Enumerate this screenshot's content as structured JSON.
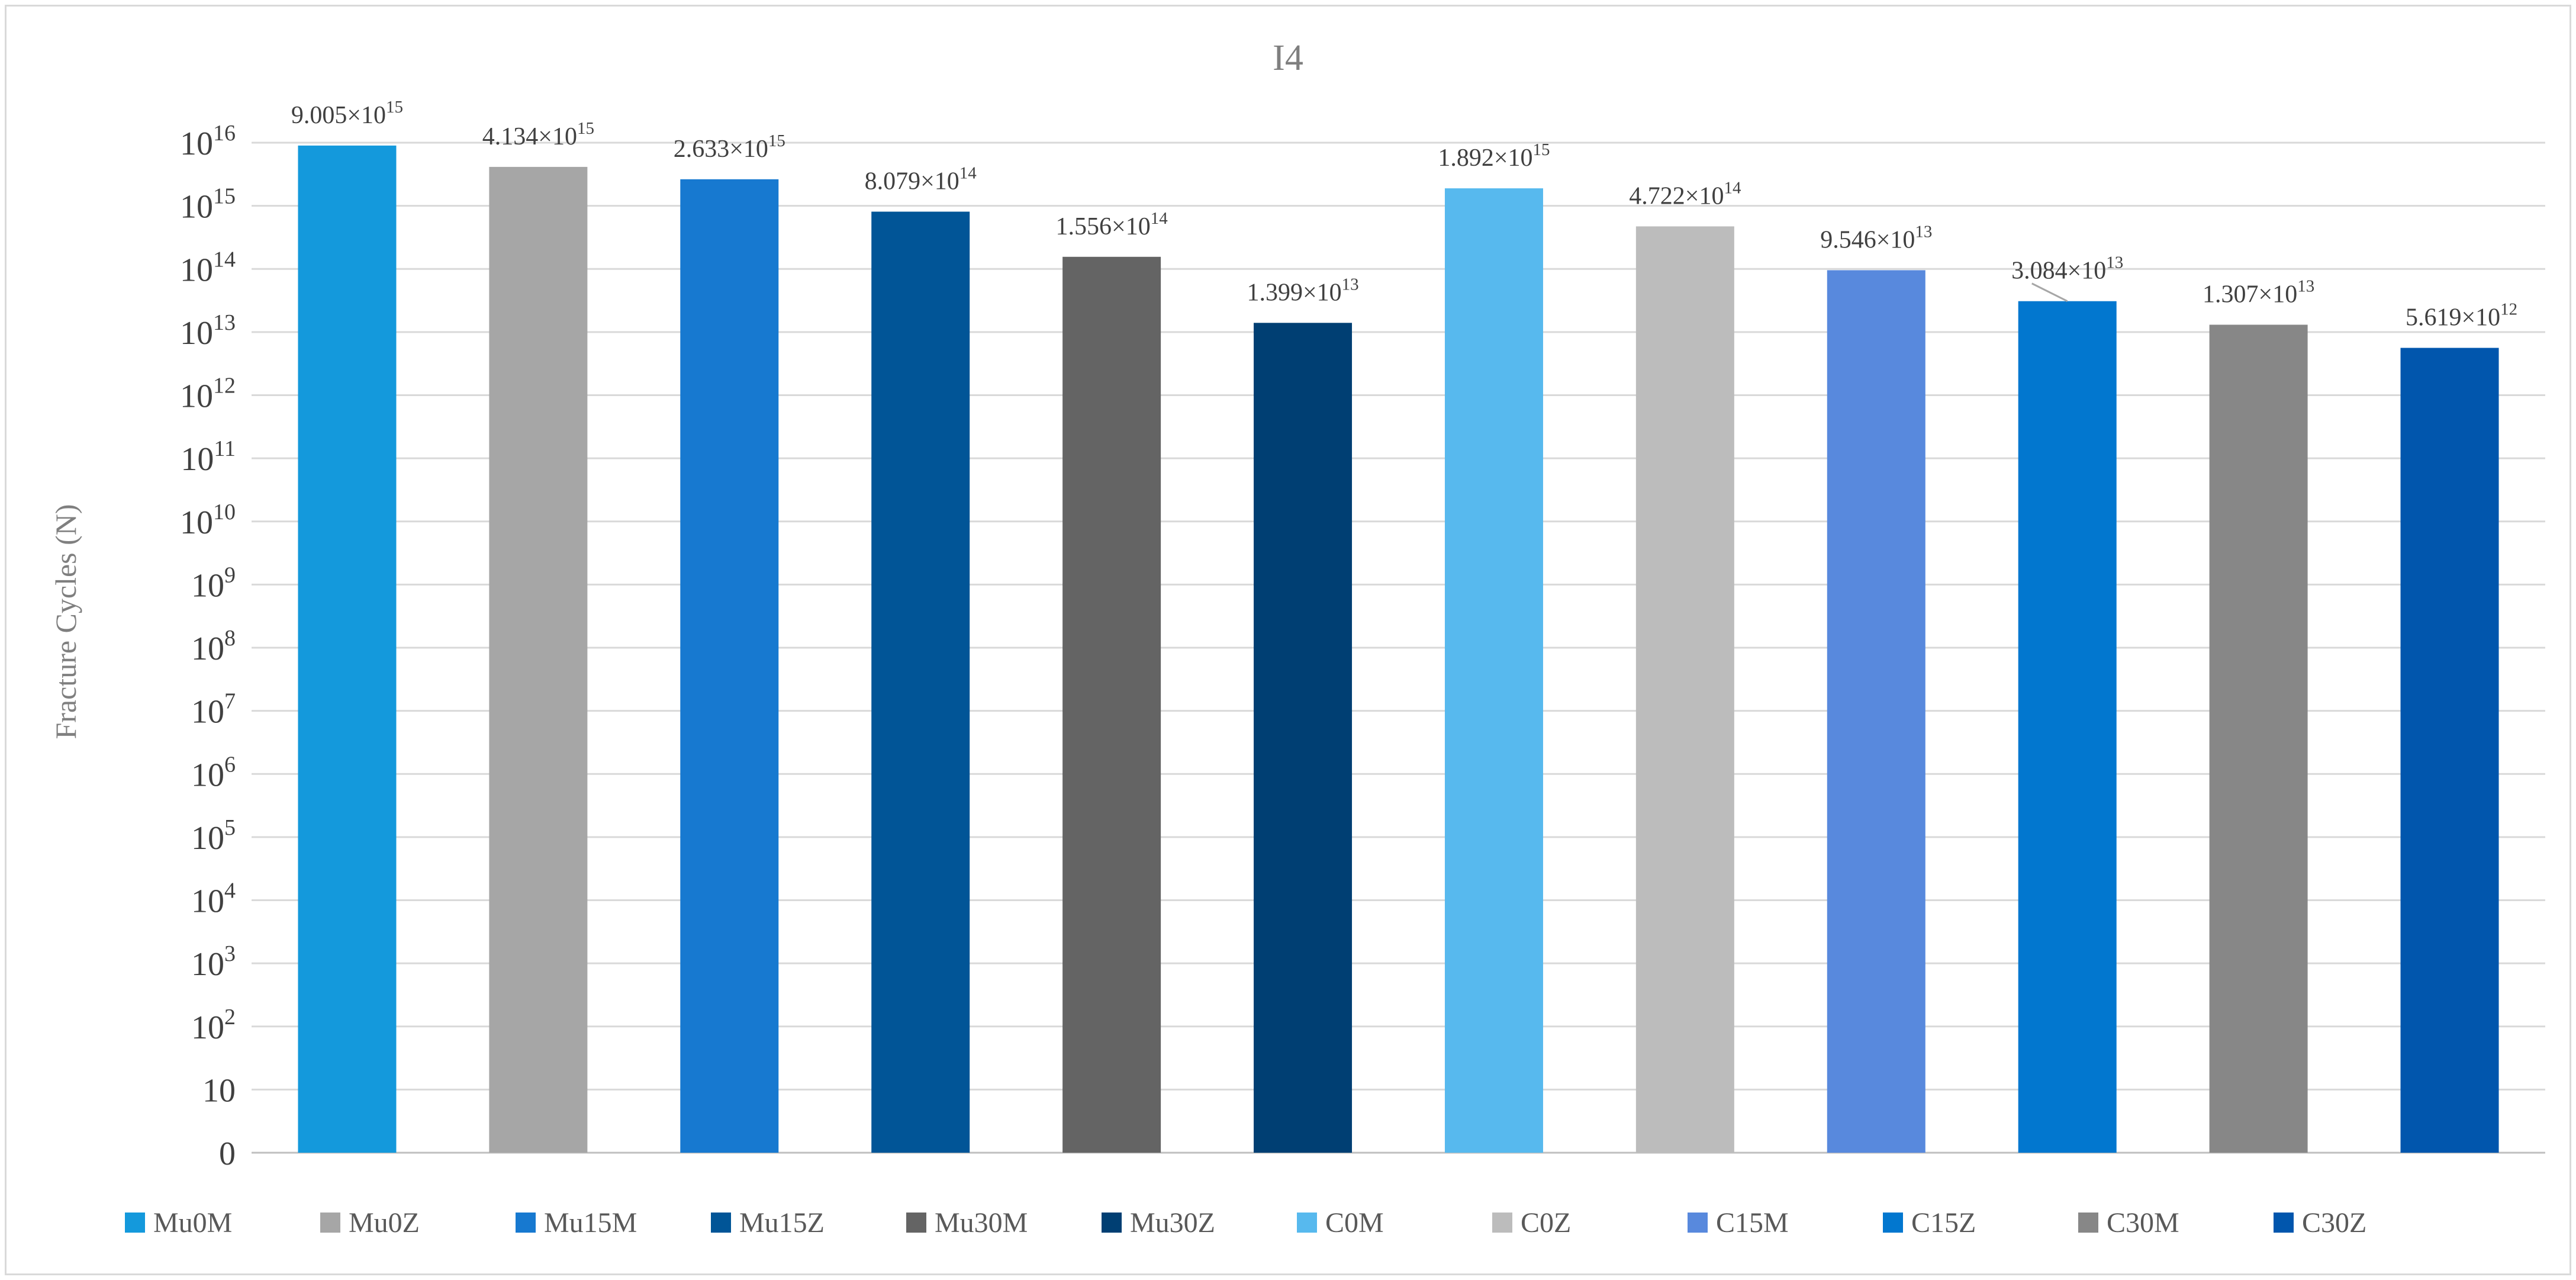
{
  "chart_data": {
    "type": "bar",
    "title": "I4",
    "ylabel": "Fracture Cycles (N)",
    "xlabel": "",
    "yscale": "log",
    "ylim": [
      1,
      10000000000000000
    ],
    "grid": true,
    "legend_position": "bottom",
    "categories": [
      "Mu0M",
      "Mu0Z",
      "Mu15M",
      "Mu15Z",
      "Mu30M",
      "Mu30Z",
      "C0M",
      "C0Z",
      "C15M",
      "C15Z",
      "C30M",
      "C30Z"
    ],
    "values": [
      9005000000000000.0,
      4134000000000000.0,
      2633000000000000.0,
      807900000000000.0,
      155600000000000.0,
      13990000000000.0,
      1892000000000000.0,
      472200000000000.0,
      95460000000000.0,
      30840000000000.0,
      13070000000000.0,
      5619000000000.0
    ],
    "data_labels": [
      {
        "mant": "9.005×10",
        "exp": "15"
      },
      {
        "mant": "4.134×10",
        "exp": "15"
      },
      {
        "mant": "2.633×10",
        "exp": "15"
      },
      {
        "mant": "8.079×10",
        "exp": "14"
      },
      {
        "mant": "1.556×10",
        "exp": "14"
      },
      {
        "mant": "1.399×10",
        "exp": "13"
      },
      {
        "mant": "1.892×10",
        "exp": "15"
      },
      {
        "mant": "4.722×10",
        "exp": "14"
      },
      {
        "mant": "9.546×10",
        "exp": "13"
      },
      {
        "mant": "3.084×10",
        "exp": "13"
      },
      {
        "mant": "1.307×10",
        "exp": "13"
      },
      {
        "mant": "5.619×10",
        "exp": "12"
      }
    ],
    "colors": [
      "#1499dc",
      "#a6a6a6",
      "#1779d0",
      "#015597",
      "#646464",
      "#003f73",
      "#57b9ee",
      "#bcbcbc",
      "#5889dd",
      "#0277cf",
      "#878787",
      "#0156ad"
    ],
    "y_ticks": [
      {
        "exp": 0,
        "base": "0",
        "sup": ""
      },
      {
        "exp": 1,
        "base": "10",
        "sup": ""
      },
      {
        "exp": 2,
        "base": "10",
        "sup": "2"
      },
      {
        "exp": 3,
        "base": "10",
        "sup": "3"
      },
      {
        "exp": 4,
        "base": "10",
        "sup": "4"
      },
      {
        "exp": 5,
        "base": "10",
        "sup": "5"
      },
      {
        "exp": 6,
        "base": "10",
        "sup": "6"
      },
      {
        "exp": 7,
        "base": "10",
        "sup": "7"
      },
      {
        "exp": 8,
        "base": "10",
        "sup": "8"
      },
      {
        "exp": 9,
        "base": "10",
        "sup": "9"
      },
      {
        "exp": 10,
        "base": "10",
        "sup": "10"
      },
      {
        "exp": 11,
        "base": "10",
        "sup": "11"
      },
      {
        "exp": 12,
        "base": "10",
        "sup": "12"
      },
      {
        "exp": 13,
        "base": "10",
        "sup": "13"
      },
      {
        "exp": 14,
        "base": "10",
        "sup": "14"
      },
      {
        "exp": 15,
        "base": "10",
        "sup": "15"
      },
      {
        "exp": 16,
        "base": "10",
        "sup": "16"
      }
    ]
  }
}
